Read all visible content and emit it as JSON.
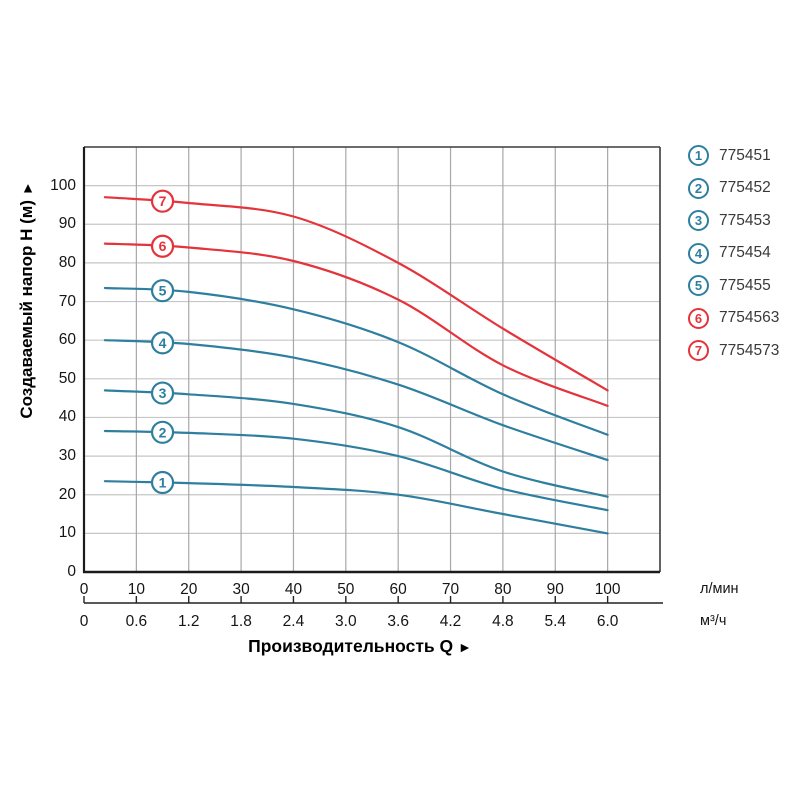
{
  "chart": {
    "y_axis_title": "Создаваемый напор H (м)",
    "y_axis_arrow": "►",
    "x_axis_title": "Производительность Q",
    "x_axis_arrow": "►",
    "unit_primary": "л/мин",
    "unit_secondary": "м³/ч"
  },
  "chart_data": {
    "type": "line",
    "title": "",
    "xlabel": "Производительность Q",
    "ylabel": "Создаваемый напор H (м)",
    "x_axis": {
      "primary_unit": "л/мин",
      "primary_ticks": [
        0,
        10,
        20,
        30,
        40,
        50,
        60,
        70,
        80,
        90,
        100
      ],
      "secondary_unit": "м³/ч",
      "secondary_ticks": [
        "0",
        "0.6",
        "1.2",
        "1.8",
        "2.4",
        "3.0",
        "3.6",
        "4.2",
        "4.8",
        "5.4",
        "6.0"
      ],
      "range_lmin": [
        0,
        110
      ]
    },
    "y_axis": {
      "unit": "м",
      "ticks": [
        0,
        10,
        20,
        30,
        40,
        50,
        60,
        70,
        80,
        90,
        100
      ],
      "range": [
        0,
        110
      ]
    },
    "grid": true,
    "legend_position": "right",
    "marker_q_lmin": 15,
    "colors": {
      "blue_series": "#2e7f9f",
      "red_series": "#e4333a"
    },
    "series": [
      {
        "marker": "1",
        "model": "775451",
        "color": "#2e7f9f",
        "q_lmin": [
          4,
          20,
          40,
          60,
          80,
          100
        ],
        "h_m": [
          23.5,
          23,
          22,
          20,
          15,
          10
        ]
      },
      {
        "marker": "2",
        "model": "775452",
        "color": "#2e7f9f",
        "q_lmin": [
          4,
          20,
          40,
          60,
          80,
          100
        ],
        "h_m": [
          36.5,
          36,
          34.5,
          30,
          21.5,
          16
        ]
      },
      {
        "marker": "3",
        "model": "775453",
        "color": "#2e7f9f",
        "q_lmin": [
          4,
          20,
          40,
          60,
          80,
          100
        ],
        "h_m": [
          47,
          46,
          43.5,
          37.5,
          26,
          19.5
        ]
      },
      {
        "marker": "4",
        "model": "775454",
        "color": "#2e7f9f",
        "q_lmin": [
          4,
          20,
          40,
          60,
          80,
          100
        ],
        "h_m": [
          60,
          59,
          55.5,
          48.5,
          38,
          29
        ]
      },
      {
        "marker": "5",
        "model": "775455",
        "color": "#2e7f9f",
        "q_lmin": [
          4,
          20,
          40,
          60,
          80,
          100
        ],
        "h_m": [
          73.5,
          72.5,
          68,
          59.5,
          46,
          35.5
        ]
      },
      {
        "marker": "6",
        "model": "7754563",
        "color": "#e4333a",
        "q_lmin": [
          4,
          20,
          40,
          60,
          80,
          100
        ],
        "h_m": [
          85,
          84,
          80.5,
          70.5,
          53.5,
          43
        ]
      },
      {
        "marker": "7",
        "model": "7754573",
        "color": "#e4333a",
        "q_lmin": [
          4,
          20,
          40,
          60,
          80,
          100
        ],
        "h_m": [
          97,
          95.5,
          92,
          80,
          63,
          47
        ]
      }
    ]
  }
}
